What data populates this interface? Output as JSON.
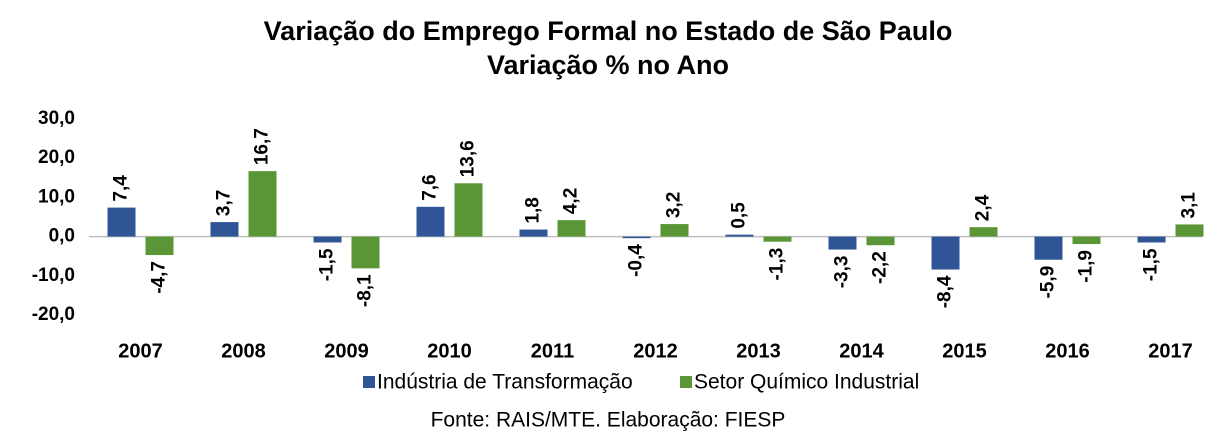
{
  "chart_data": {
    "type": "bar",
    "title": "Variação do Emprego Formal no Estado de São Paulo",
    "subtitle": "Variação % no Ano",
    "source": "Fonte: RAIS/MTE. Elaboração: FIESP",
    "categories": [
      "2007",
      "2008",
      "2009",
      "2010",
      "2011",
      "2012",
      "2013",
      "2014",
      "2015",
      "2016",
      "2017"
    ],
    "series": [
      {
        "name": "Indústria de Transformação",
        "color": "#2f5597",
        "values": [
          7.4,
          3.7,
          -1.5,
          7.6,
          1.8,
          -0.4,
          0.5,
          -3.3,
          -8.4,
          -5.9,
          -1.5
        ],
        "value_labels": [
          "7,4",
          "3,7",
          "-1,5",
          "7,6",
          "1,8",
          "-0,4",
          "0,5",
          "-3,3",
          "-8,4",
          "-5,9",
          "-1,5"
        ]
      },
      {
        "name": "Setor Químico Industrial",
        "color": "#5a9636",
        "values": [
          -4.7,
          16.7,
          -8.1,
          13.6,
          4.2,
          3.2,
          -1.3,
          -2.2,
          2.4,
          -1.9,
          3.1
        ],
        "value_labels": [
          "-4,7",
          "16,7",
          "-8,1",
          "13,6",
          "4,2",
          "3,2",
          "-1,3",
          "-2,2",
          "2,4",
          "-1,9",
          "3,1"
        ]
      }
    ],
    "ylim": [
      -20,
      30
    ],
    "yticks": [
      {
        "value": -20,
        "label": "-20,0"
      },
      {
        "value": -10,
        "label": "-10,0"
      },
      {
        "value": 0,
        "label": "0,0"
      },
      {
        "value": 10,
        "label": "10,0"
      },
      {
        "value": 20,
        "label": "20,0"
      },
      {
        "value": 30,
        "label": "30,0"
      }
    ],
    "grid": false,
    "legend": "bottom"
  }
}
